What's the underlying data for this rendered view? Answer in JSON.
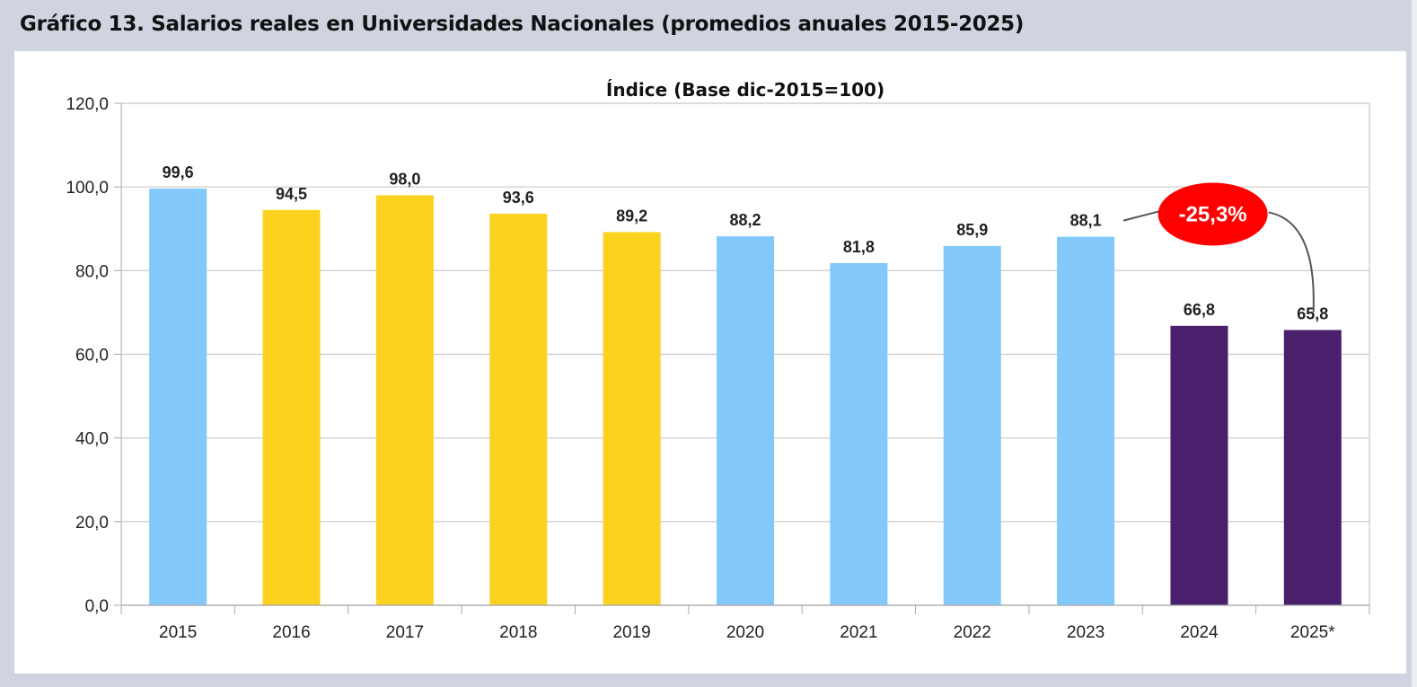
{
  "figure_title": "Gráfico 13.  Salarios reales en Universidades Nacionales (promedios anuales 2015-2025)",
  "chart_data": {
    "type": "bar",
    "title": "Índice (Base dic-2015=100)",
    "xlabel": "",
    "ylabel": "",
    "categories": [
      "2015",
      "2016",
      "2017",
      "2018",
      "2019",
      "2020",
      "2021",
      "2022",
      "2023",
      "2024",
      "2025*"
    ],
    "values": [
      99.6,
      94.5,
      98.0,
      93.6,
      89.2,
      88.2,
      81.8,
      85.9,
      88.1,
      66.8,
      65.8
    ],
    "data_labels": [
      "99,6",
      "94,5",
      "98,0",
      "93,6",
      "89,2",
      "88,2",
      "81,8",
      "85,9",
      "88,1",
      "66,8",
      "65,8"
    ],
    "bar_colors": [
      "#82c8fb",
      "#fcd21f",
      "#fcd21f",
      "#fcd21f",
      "#fcd21f",
      "#82c8fb",
      "#82c8fb",
      "#82c8fb",
      "#82c8fb",
      "#4a1f6c",
      "#4a1f6c"
    ],
    "ylim": [
      0,
      120
    ],
    "yticks": [
      0,
      20,
      40,
      60,
      80,
      100,
      120
    ],
    "ytick_labels": [
      "0,0",
      "20,0",
      "40,0",
      "60,0",
      "80,0",
      "100,0",
      "120,0"
    ],
    "grid": true,
    "legend": "none",
    "annotations": [
      {
        "text": "-25,3%",
        "from_category": "2023",
        "to_category": "2025*",
        "fill": "#ff0000",
        "text_color": "#ffffff"
      }
    ]
  }
}
